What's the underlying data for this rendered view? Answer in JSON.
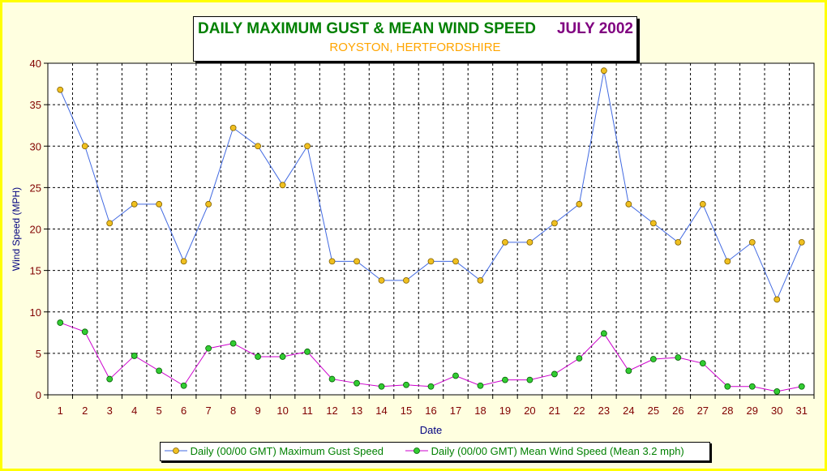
{
  "title": {
    "main": "DAILY MAXIMUM GUST & MEAN WIND SPEED",
    "month": "JULY 2002",
    "subtitle": "ROYSTON, HERTFORDSHIRE"
  },
  "colors": {
    "frame_background": "#ffffe0",
    "frame_border": "#ffff00",
    "gust_line": "#4169e1",
    "gust_marker": "#f0c020",
    "mean_line": "#cc00cc",
    "mean_marker": "#33cc33",
    "axis_text": "#800000",
    "axis_title": "#000080"
  },
  "chart_data": {
    "type": "line",
    "title": "DAILY MAXIMUM GUST & MEAN WIND SPEED",
    "xlabel": "Date",
    "ylabel": "Wind Speed (MPH)",
    "ylim": [
      0,
      40
    ],
    "ytick_step": 5,
    "grid": true,
    "legend_position": "bottom",
    "categories": [
      "1",
      "2",
      "3",
      "4",
      "5",
      "6",
      "7",
      "8",
      "9",
      "10",
      "11",
      "12",
      "13",
      "14",
      "15",
      "16",
      "17",
      "18",
      "19",
      "20",
      "21",
      "22",
      "23",
      "24",
      "25",
      "26",
      "27",
      "28",
      "29",
      "30",
      "31"
    ],
    "series": [
      {
        "name": "Daily (00/00 GMT) Maximum Gust Speed",
        "values": [
          36.8,
          30.0,
          20.7,
          23.0,
          23.0,
          16.1,
          23.0,
          32.2,
          30.0,
          25.3,
          30.0,
          16.1,
          16.1,
          13.8,
          13.8,
          16.1,
          16.1,
          13.8,
          18.4,
          18.4,
          20.7,
          23.0,
          39.1,
          23.0,
          20.7,
          18.4,
          23.0,
          16.1,
          18.4,
          11.5,
          18.4
        ]
      },
      {
        "name": "Daily (00/00 GMT) Mean Wind Speed (Mean 3.2 mph)",
        "values": [
          8.7,
          7.6,
          1.9,
          4.7,
          2.9,
          1.1,
          5.6,
          6.2,
          4.6,
          4.6,
          5.2,
          1.9,
          1.4,
          1.0,
          1.2,
          1.0,
          2.3,
          1.1,
          1.8,
          1.8,
          2.5,
          4.4,
          7.4,
          2.9,
          4.3,
          4.5,
          3.8,
          1.0,
          1.0,
          0.4,
          1.0
        ]
      }
    ]
  }
}
